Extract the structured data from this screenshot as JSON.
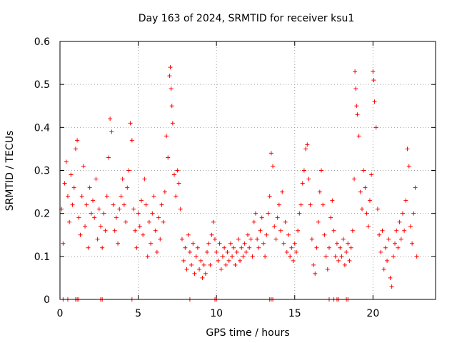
{
  "chart_data": {
    "type": "scatter",
    "title": "Day 163 of 2024, SRMTID for receiver ksu1",
    "xlabel": "GPS time / hours",
    "ylabel": "SRMTID / TECUs",
    "xlim": [
      0,
      24
    ],
    "ylim": [
      0,
      0.6
    ],
    "xticks": [
      0,
      5,
      10,
      15,
      20
    ],
    "yticks": [
      0,
      0.1,
      0.2,
      0.3,
      0.4,
      0.5,
      0.6
    ],
    "xtick_labels": [
      "0",
      "5",
      "10",
      "15",
      "20"
    ],
    "ytick_labels": [
      "0",
      "0.1",
      "0.2",
      "0.3",
      "0.4",
      "0.5",
      "0.6"
    ],
    "grid": true,
    "marker": "+",
    "color": "#ff0000",
    "series": [
      {
        "name": "SRMTID",
        "points": [
          [
            0.1,
            0.21
          ],
          [
            0.2,
            0.13
          ],
          [
            0.3,
            0.27
          ],
          [
            0.4,
            0.32
          ],
          [
            0.5,
            0.24
          ],
          [
            0.6,
            0.18
          ],
          [
            0.7,
            0.29
          ],
          [
            0.8,
            0.22
          ],
          [
            0.9,
            0.26
          ],
          [
            1.0,
            0.35
          ],
          [
            1.1,
            0.37
          ],
          [
            1.2,
            0.19
          ],
          [
            1.3,
            0.15
          ],
          [
            1.4,
            0.24
          ],
          [
            1.5,
            0.31
          ],
          [
            1.6,
            0.17
          ],
          [
            1.7,
            0.22
          ],
          [
            1.8,
            0.12
          ],
          [
            1.9,
            0.26
          ],
          [
            2.0,
            0.2
          ],
          [
            2.1,
            0.23
          ],
          [
            2.2,
            0.19
          ],
          [
            2.3,
            0.28
          ],
          [
            2.4,
            0.14
          ],
          [
            2.5,
            0.21
          ],
          [
            2.6,
            0.17
          ],
          [
            2.7,
            0.12
          ],
          [
            2.8,
            0.2
          ],
          [
            2.9,
            0.16
          ],
          [
            3.0,
            0.24
          ],
          [
            3.1,
            0.33
          ],
          [
            3.2,
            0.42
          ],
          [
            3.3,
            0.39
          ],
          [
            3.4,
            0.22
          ],
          [
            3.5,
            0.16
          ],
          [
            3.6,
            0.19
          ],
          [
            3.7,
            0.13
          ],
          [
            3.8,
            0.21
          ],
          [
            3.9,
            0.24
          ],
          [
            4.0,
            0.28
          ],
          [
            4.1,
            0.22
          ],
          [
            4.2,
            0.18
          ],
          [
            4.3,
            0.26
          ],
          [
            4.4,
            0.3
          ],
          [
            4.5,
            0.41
          ],
          [
            4.6,
            0.37
          ],
          [
            4.7,
            0.21
          ],
          [
            4.8,
            0.16
          ],
          [
            4.9,
            0.12
          ],
          [
            5.0,
            0.2
          ],
          [
            5.1,
            0.17
          ],
          [
            5.2,
            0.23
          ],
          [
            5.3,
            0.15
          ],
          [
            5.4,
            0.28
          ],
          [
            5.5,
            0.22
          ],
          [
            5.6,
            0.1
          ],
          [
            5.7,
            0.18
          ],
          [
            5.8,
            0.13
          ],
          [
            5.9,
            0.2
          ],
          [
            6.0,
            0.24
          ],
          [
            6.1,
            0.16
          ],
          [
            6.2,
            0.11
          ],
          [
            6.3,
            0.19
          ],
          [
            6.4,
            0.14
          ],
          [
            6.5,
            0.22
          ],
          [
            6.6,
            0.18
          ],
          [
            6.7,
            0.25
          ],
          [
            6.8,
            0.38
          ],
          [
            6.9,
            0.33
          ],
          [
            7.0,
            0.52
          ],
          [
            7.05,
            0.54
          ],
          [
            7.1,
            0.49
          ],
          [
            7.15,
            0.45
          ],
          [
            7.2,
            0.41
          ],
          [
            7.3,
            0.29
          ],
          [
            7.4,
            0.24
          ],
          [
            7.5,
            0.3
          ],
          [
            7.6,
            0.27
          ],
          [
            7.7,
            0.21
          ],
          [
            7.8,
            0.14
          ],
          [
            7.9,
            0.09
          ],
          [
            8.0,
            0.12
          ],
          [
            8.1,
            0.07
          ],
          [
            8.2,
            0.15
          ],
          [
            8.3,
            0.11
          ],
          [
            8.4,
            0.08
          ],
          [
            8.5,
            0.13
          ],
          [
            8.6,
            0.06
          ],
          [
            8.7,
            0.1
          ],
          [
            8.8,
            0.12
          ],
          [
            8.9,
            0.07
          ],
          [
            9.0,
            0.09
          ],
          [
            9.1,
            0.05
          ],
          [
            9.2,
            0.08
          ],
          [
            9.3,
            0.06
          ],
          [
            9.4,
            0.11
          ],
          [
            9.5,
            0.13
          ],
          [
            9.6,
            0.08
          ],
          [
            9.7,
            0.15
          ],
          [
            9.8,
            0.18
          ],
          [
            9.9,
            0.14
          ],
          [
            10.0,
            0.11
          ],
          [
            10.1,
            0.09
          ],
          [
            10.2,
            0.13
          ],
          [
            10.3,
            0.07
          ],
          [
            10.4,
            0.1
          ],
          [
            10.5,
            0.12
          ],
          [
            10.6,
            0.08
          ],
          [
            10.7,
            0.11
          ],
          [
            10.8,
            0.09
          ],
          [
            10.9,
            0.13
          ],
          [
            11.0,
            0.1
          ],
          [
            11.1,
            0.12
          ],
          [
            11.2,
            0.08
          ],
          [
            11.3,
            0.11
          ],
          [
            11.4,
            0.14
          ],
          [
            11.5,
            0.09
          ],
          [
            11.6,
            0.12
          ],
          [
            11.7,
            0.1
          ],
          [
            11.8,
            0.13
          ],
          [
            11.9,
            0.11
          ],
          [
            12.0,
            0.15
          ],
          [
            12.1,
            0.12
          ],
          [
            12.2,
            0.14
          ],
          [
            12.3,
            0.1
          ],
          [
            12.4,
            0.18
          ],
          [
            12.5,
            0.2
          ],
          [
            12.6,
            0.14
          ],
          [
            12.7,
            0.12
          ],
          [
            12.8,
            0.16
          ],
          [
            12.9,
            0.19
          ],
          [
            13.0,
            0.13
          ],
          [
            13.1,
            0.1
          ],
          [
            13.2,
            0.15
          ],
          [
            13.3,
            0.2
          ],
          [
            13.4,
            0.24
          ],
          [
            13.5,
            0.34
          ],
          [
            13.6,
            0.31
          ],
          [
            13.7,
            0.17
          ],
          [
            13.8,
            0.14
          ],
          [
            13.9,
            0.19
          ],
          [
            14.0,
            0.22
          ],
          [
            14.1,
            0.16
          ],
          [
            14.2,
            0.25
          ],
          [
            14.3,
            0.13
          ],
          [
            14.4,
            0.18
          ],
          [
            14.5,
            0.11
          ],
          [
            14.6,
            0.15
          ],
          [
            14.7,
            0.1
          ],
          [
            14.8,
            0.12
          ],
          [
            14.9,
            0.09
          ],
          [
            15.0,
            0.13
          ],
          [
            15.1,
            0.11
          ],
          [
            15.2,
            0.16
          ],
          [
            15.3,
            0.2
          ],
          [
            15.4,
            0.22
          ],
          [
            15.5,
            0.27
          ],
          [
            15.6,
            0.3
          ],
          [
            15.7,
            0.35
          ],
          [
            15.8,
            0.36
          ],
          [
            15.9,
            0.28
          ],
          [
            16.0,
            0.22
          ],
          [
            16.1,
            0.14
          ],
          [
            16.2,
            0.08
          ],
          [
            16.3,
            0.06
          ],
          [
            16.4,
            0.12
          ],
          [
            16.5,
            0.18
          ],
          [
            16.6,
            0.25
          ],
          [
            16.7,
            0.3
          ],
          [
            16.8,
            0.22
          ],
          [
            16.9,
            0.15
          ],
          [
            17.0,
            0.1
          ],
          [
            17.1,
            0.07
          ],
          [
            17.2,
            0.12
          ],
          [
            17.3,
            0.19
          ],
          [
            17.4,
            0.23
          ],
          [
            17.5,
            0.16
          ],
          [
            17.6,
            0.1
          ],
          [
            17.7,
            0.13
          ],
          [
            17.8,
            0.09
          ],
          [
            17.9,
            0.12
          ],
          [
            18.0,
            0.1
          ],
          [
            18.1,
            0.14
          ],
          [
            18.2,
            0.08
          ],
          [
            18.3,
            0.11
          ],
          [
            18.4,
            0.13
          ],
          [
            18.5,
            0.09
          ],
          [
            18.6,
            0.12
          ],
          [
            18.7,
            0.16
          ],
          [
            18.8,
            0.28
          ],
          [
            18.85,
            0.53
          ],
          [
            18.9,
            0.49
          ],
          [
            18.95,
            0.45
          ],
          [
            19.0,
            0.43
          ],
          [
            19.1,
            0.38
          ],
          [
            19.2,
            0.25
          ],
          [
            19.3,
            0.21
          ],
          [
            19.4,
            0.3
          ],
          [
            19.5,
            0.26
          ],
          [
            19.6,
            0.2
          ],
          [
            19.7,
            0.17
          ],
          [
            19.8,
            0.23
          ],
          [
            19.9,
            0.29
          ],
          [
            20.0,
            0.53
          ],
          [
            20.05,
            0.51
          ],
          [
            20.1,
            0.46
          ],
          [
            20.2,
            0.4
          ],
          [
            20.3,
            0.21
          ],
          [
            20.4,
            0.15
          ],
          [
            20.5,
            0.11
          ],
          [
            20.6,
            0.16
          ],
          [
            20.7,
            0.07
          ],
          [
            20.8,
            0.12
          ],
          [
            20.9,
            0.09
          ],
          [
            21.0,
            0.14
          ],
          [
            21.1,
            0.05
          ],
          [
            21.2,
            0.03
          ],
          [
            21.3,
            0.1
          ],
          [
            21.4,
            0.13
          ],
          [
            21.5,
            0.16
          ],
          [
            21.6,
            0.12
          ],
          [
            21.7,
            0.18
          ],
          [
            21.8,
            0.14
          ],
          [
            21.9,
            0.2
          ],
          [
            22.0,
            0.16
          ],
          [
            22.1,
            0.23
          ],
          [
            22.2,
            0.35
          ],
          [
            22.3,
            0.31
          ],
          [
            22.4,
            0.17
          ],
          [
            22.5,
            0.13
          ],
          [
            22.6,
            0.2
          ],
          [
            22.7,
            0.26
          ],
          [
            22.8,
            0.1
          ]
        ],
        "zero_points": [
          0.2,
          0.5,
          1.0,
          1.1,
          1.2,
          2.6,
          2.7,
          4.6,
          8.3,
          9.9,
          10.0,
          13.4,
          13.5,
          13.6,
          17.2,
          17.5,
          17.7,
          17.8,
          18.3,
          18.4
        ]
      }
    ]
  }
}
